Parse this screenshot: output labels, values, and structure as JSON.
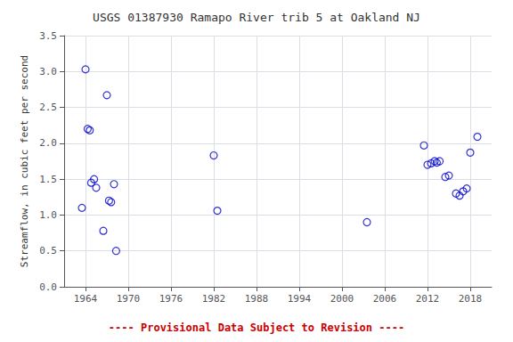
{
  "chart_data": {
    "type": "scatter",
    "title": "USGS 01387930 Ramapo River trib 5 at Oakland NJ",
    "ylabel": "Streamflow, in cubic feet per second",
    "x": [
      1963.5,
      1964.0,
      1964.3,
      1964.6,
      1964.8,
      1965.2,
      1965.5,
      1966.5,
      1967.0,
      1967.3,
      1967.6,
      1968.0,
      1968.3,
      1982.0,
      1982.5,
      2003.5,
      2011.5,
      2012.0,
      2012.5,
      2013.0,
      2013.3,
      2013.7,
      2014.5,
      2015.0,
      2016.0,
      2016.5,
      2017.0,
      2017.5,
      2018.0,
      2019.0
    ],
    "values": [
      1.1,
      3.03,
      2.2,
      2.18,
      1.45,
      1.5,
      1.38,
      0.78,
      2.67,
      1.2,
      1.18,
      1.43,
      0.5,
      1.83,
      1.06,
      0.9,
      1.97,
      1.7,
      1.72,
      1.75,
      1.73,
      1.75,
      1.53,
      1.55,
      1.3,
      1.27,
      1.33,
      1.37,
      1.87,
      2.09
    ],
    "color": "#0000cc",
    "marker": "circle",
    "xlim": [
      1961,
      2021
    ],
    "xticks": [
      1964,
      1970,
      1976,
      1982,
      1988,
      1994,
      2000,
      2006,
      2012,
      2018
    ],
    "ylim": [
      0.0,
      3.5
    ],
    "yticks": [
      {
        "value": 0.0,
        "label": "0.0"
      },
      0.5,
      {
        "value": 1.0,
        "label": "1.0"
      },
      1.5,
      {
        "value": 2.0,
        "label": "2.0"
      },
      2.5,
      {
        "value": 3.0,
        "label": "3.0"
      },
      3.5
    ],
    "grid": true,
    "annotations": [
      {
        "text": "---- Provisional Data Subject to Revision ----",
        "color": "#cc0000"
      }
    ]
  }
}
